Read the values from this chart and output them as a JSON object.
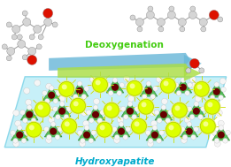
{
  "title": "Hydroxyapatite",
  "arrow_text": "Deoxygenation",
  "bg": "#ffffff",
  "crystal_face": "#c0eef8",
  "crystal_edge": "#80d4e8",
  "arrow_text_color": "#44cc11",
  "arrow_text_fontsize": 7.5,
  "title_color": "#00aacc",
  "title_fontsize": 7.5,
  "blue_arrow_color": "#6ab8d8",
  "green_arrow_color": "#aadd44",
  "ca_color": "#ddff00",
  "ca_edge": "#aacc00",
  "po4_color": "#44bb44",
  "po4_edge": "#227722",
  "p_color": "#660000",
  "oh_color": "#f5f5f5",
  "oh_edge": "#bbbbbb",
  "mol_gray": "#d5d5d5",
  "mol_red": "#dd1100",
  "bond_color": "#999999",
  "mol_outline": "#777777"
}
